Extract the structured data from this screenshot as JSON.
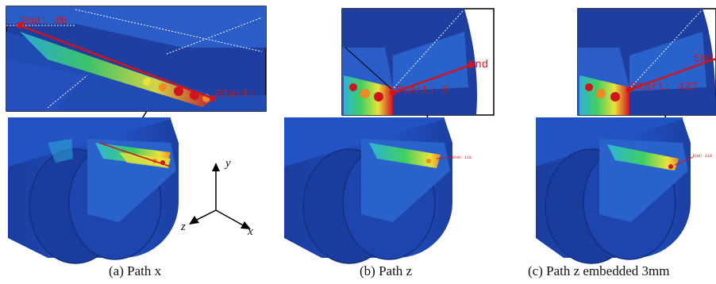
{
  "panels": [
    {
      "caption": "(a)  Path x",
      "labels": {
        "end": "End: 36",
        "start": "Start:"
      }
    },
    {
      "caption": "(b)  Path z",
      "labels": {
        "end": "End",
        "start": "Start: 9",
        "small_end": "End: 118"
      }
    },
    {
      "caption": "(c)  Path z embedded 3mm",
      "labels": {
        "end": "End",
        "start": "Start: 427",
        "small_end": "End: 118"
      }
    }
  ],
  "axes": {
    "x": "x",
    "y": "y",
    "z": "z"
  },
  "colors": {
    "background_blue": "#1e3fa0",
    "cylinder_blue": "#1d47b8",
    "cyan": "#2fb3d9",
    "green": "#3fcf62",
    "yellow": "#e8e33a",
    "orange": "#ef8a22",
    "red": "#d0141e",
    "path_red": "#d0141e"
  }
}
